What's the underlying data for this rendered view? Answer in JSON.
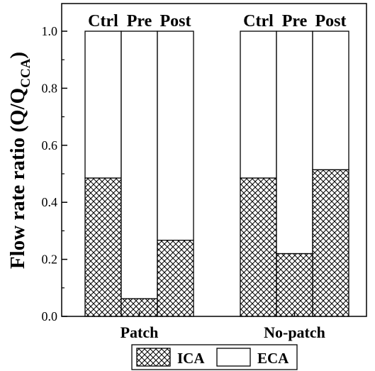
{
  "chart_data": {
    "type": "bar",
    "stacked": true,
    "ylabel_main": "Flow rate ratio (Q/Q",
    "ylabel_sub": "CCA",
    "ylabel_close": ")",
    "ylim": [
      0,
      1.0
    ],
    "yticks": [
      "0.0",
      "0.2",
      "0.4",
      "0.6",
      "0.8",
      "1.0"
    ],
    "ytick_values": [
      0,
      0.2,
      0.4,
      0.6,
      0.8,
      1.0
    ],
    "groups": [
      {
        "label": "Patch",
        "bar_labels": [
          "Ctrl",
          "Pre",
          "Post"
        ]
      },
      {
        "label": "No-patch",
        "bar_labels": [
          "Ctrl",
          "Pre",
          "Post"
        ]
      }
    ],
    "series": [
      {
        "name": "ICA",
        "pattern": "crosshatch",
        "values": [
          [
            0.485,
            0.062,
            0.267
          ],
          [
            0.485,
            0.22,
            0.514
          ]
        ]
      },
      {
        "name": "ECA",
        "pattern": "none",
        "values": [
          [
            0.515,
            0.938,
            0.733
          ],
          [
            0.515,
            0.78,
            0.486
          ]
        ]
      }
    ],
    "legend": {
      "placement": "bottom-center",
      "entries": [
        "ICA",
        "ECA"
      ]
    },
    "grid": false
  }
}
